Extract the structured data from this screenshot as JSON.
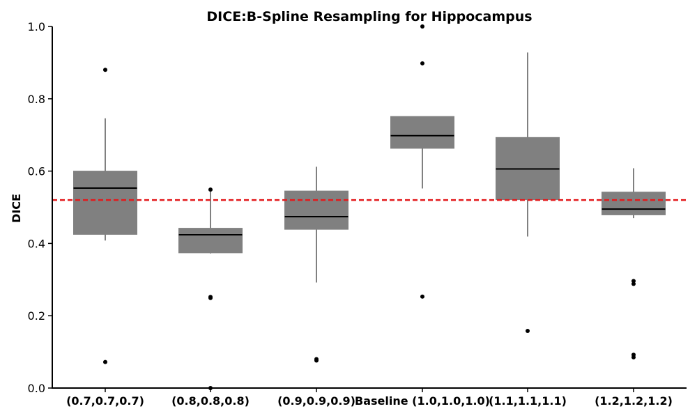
{
  "chart_data": {
    "type": "box",
    "title": "DICE:B-Spline Resampling for Hippocampus",
    "xlabel": "",
    "ylabel": "DICE",
    "ylim": [
      0,
      1.0
    ],
    "yticks": [
      0.0,
      0.2,
      0.4,
      0.6,
      0.8,
      1.0
    ],
    "ytick_labels": [
      "0.0",
      "0.2",
      "0.4",
      "0.6",
      "0.8",
      "1.0"
    ],
    "categories": [
      "(0.7,0.7,0.7)",
      "(0.8,0.8,0.8)",
      "(0.9,0.9,0.9)",
      "Baseline (1.0,1.0,1.0)",
      "(1.1,1.1,1.1)",
      "(1.2,1.2,1.2)"
    ],
    "boxes": [
      {
        "whisker_low": 0.408,
        "q1": 0.425,
        "median": 0.553,
        "q3": 0.6,
        "whisker_high": 0.746,
        "outliers": [
          0.88,
          0.072
        ]
      },
      {
        "whisker_low": 0.372,
        "q1": 0.374,
        "median": 0.424,
        "q3": 0.442,
        "whisker_high": 0.549,
        "outliers": [
          0.549,
          0.252,
          0.249,
          0.0
        ]
      },
      {
        "whisker_low": 0.292,
        "q1": 0.439,
        "median": 0.474,
        "q3": 0.545,
        "whisker_high": 0.612,
        "outliers": [
          0.08,
          0.076
        ]
      },
      {
        "whisker_low": 0.552,
        "q1": 0.663,
        "median": 0.698,
        "q3": 0.751,
        "whisker_high": 0.751,
        "outliers": [
          1.0,
          0.898,
          0.253
        ]
      },
      {
        "whisker_low": 0.419,
        "q1": 0.521,
        "median": 0.606,
        "q3": 0.693,
        "whisker_high": 0.928,
        "outliers": [
          0.158
        ]
      },
      {
        "whisker_low": 0.47,
        "q1": 0.479,
        "median": 0.495,
        "q3": 0.542,
        "whisker_high": 0.608,
        "outliers": [
          0.296,
          0.288,
          0.092,
          0.085
        ]
      }
    ],
    "reference_line": {
      "y": 0.52,
      "color": "#e31a1c",
      "style": "dashed"
    },
    "box_color": "#808080",
    "median_color": "#000000",
    "grid": false,
    "legend": false
  }
}
